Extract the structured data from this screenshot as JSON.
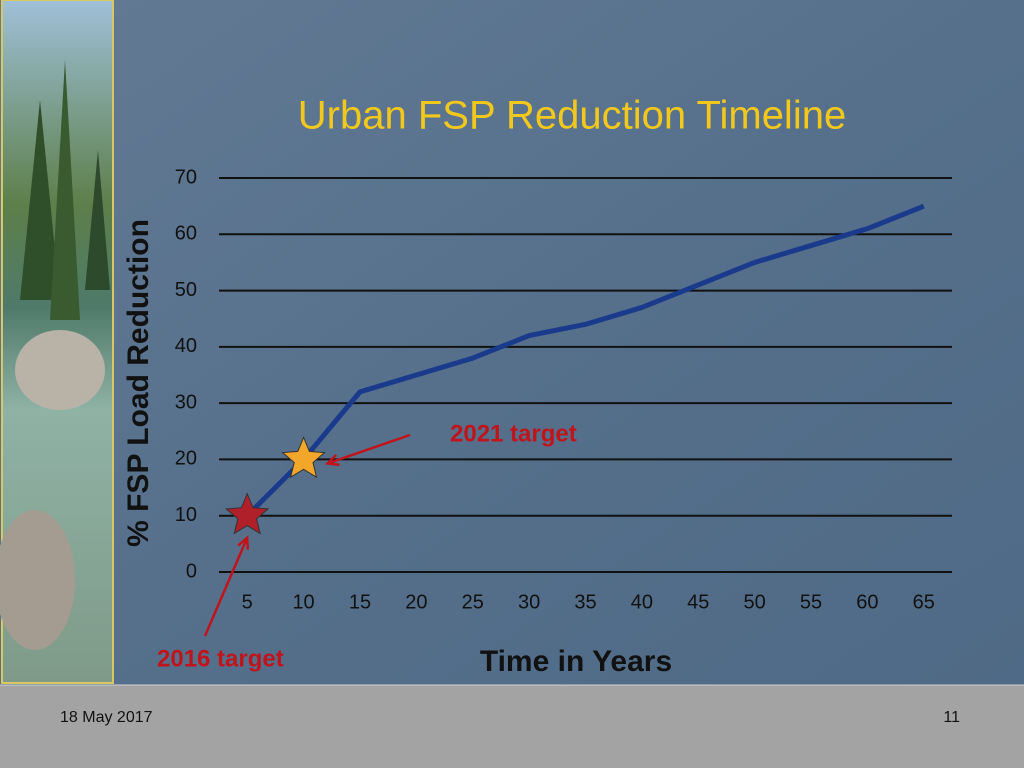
{
  "chart_data": {
    "type": "line",
    "title": "Urban FSP Reduction Timeline",
    "x_label": "Time in Years",
    "y_label": "% FSP Load Reduction",
    "categories": [
      "5",
      "10",
      "15",
      "20",
      "25",
      "30",
      "35",
      "40",
      "45",
      "50",
      "55",
      "60",
      "65"
    ],
    "series": [
      {
        "color": "#1a3a8c",
        "values": [
          10,
          20,
          32,
          35,
          38,
          42,
          44,
          47,
          51,
          55,
          58,
          61,
          65
        ]
      }
    ],
    "ylim": [
      0,
      70
    ],
    "yticks": [
      0,
      10,
      20,
      30,
      40,
      50,
      60,
      70
    ],
    "grid": true,
    "annotations": [
      {
        "text": "2016 target",
        "x": "5",
        "value": 10,
        "color": "#b0202a"
      },
      {
        "text": "2021 target",
        "x": "10",
        "value": 20,
        "color": "#f2a72a"
      }
    ]
  },
  "footer": {
    "date": "18 May 2017",
    "page": "11"
  }
}
